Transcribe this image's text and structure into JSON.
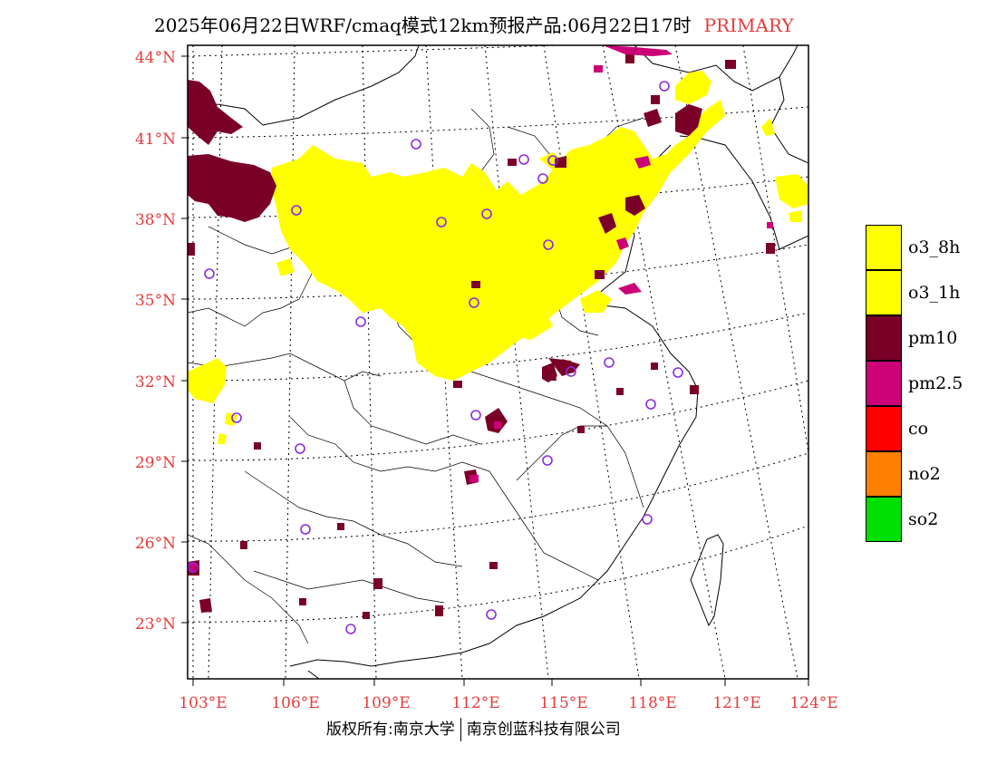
{
  "title": {
    "main": "2025年06月22日WRF/cmaq模式12km预报产品:06月22日17时",
    "tag": "PRIMARY"
  },
  "credit": {
    "left": "版权所有:南京大学",
    "right": "南京创蓝科技有限公司"
  },
  "axes": {
    "lat_labels": [
      "44°N",
      "41°N",
      "38°N",
      "35°N",
      "32°N",
      "29°N",
      "26°N",
      "23°N"
    ],
    "lon_labels": [
      "103°E",
      "106°E",
      "109°E",
      "112°E",
      "115°E",
      "118°E",
      "121°E",
      "124°E"
    ],
    "label_color": "#e83a3a"
  },
  "legend": [
    {
      "label": "o3_8h",
      "color": "#ffff00"
    },
    {
      "label": "o3_1h",
      "color": "#ffff00"
    },
    {
      "label": "pm10",
      "color": "#7a0028"
    },
    {
      "label": "pm2.5",
      "color": "#cc0077"
    },
    {
      "label": "co",
      "color": "#ff0000"
    },
    {
      "label": "no2",
      "color": "#ff7f00"
    },
    {
      "label": "so2",
      "color": "#00e000"
    }
  ],
  "colors": {
    "o3": "#ffff00",
    "pm10": "#7a0028",
    "pm25": "#cc0077",
    "station_marker": "#8a2be2",
    "boundary": "#000000",
    "graticule": "#000000"
  }
}
